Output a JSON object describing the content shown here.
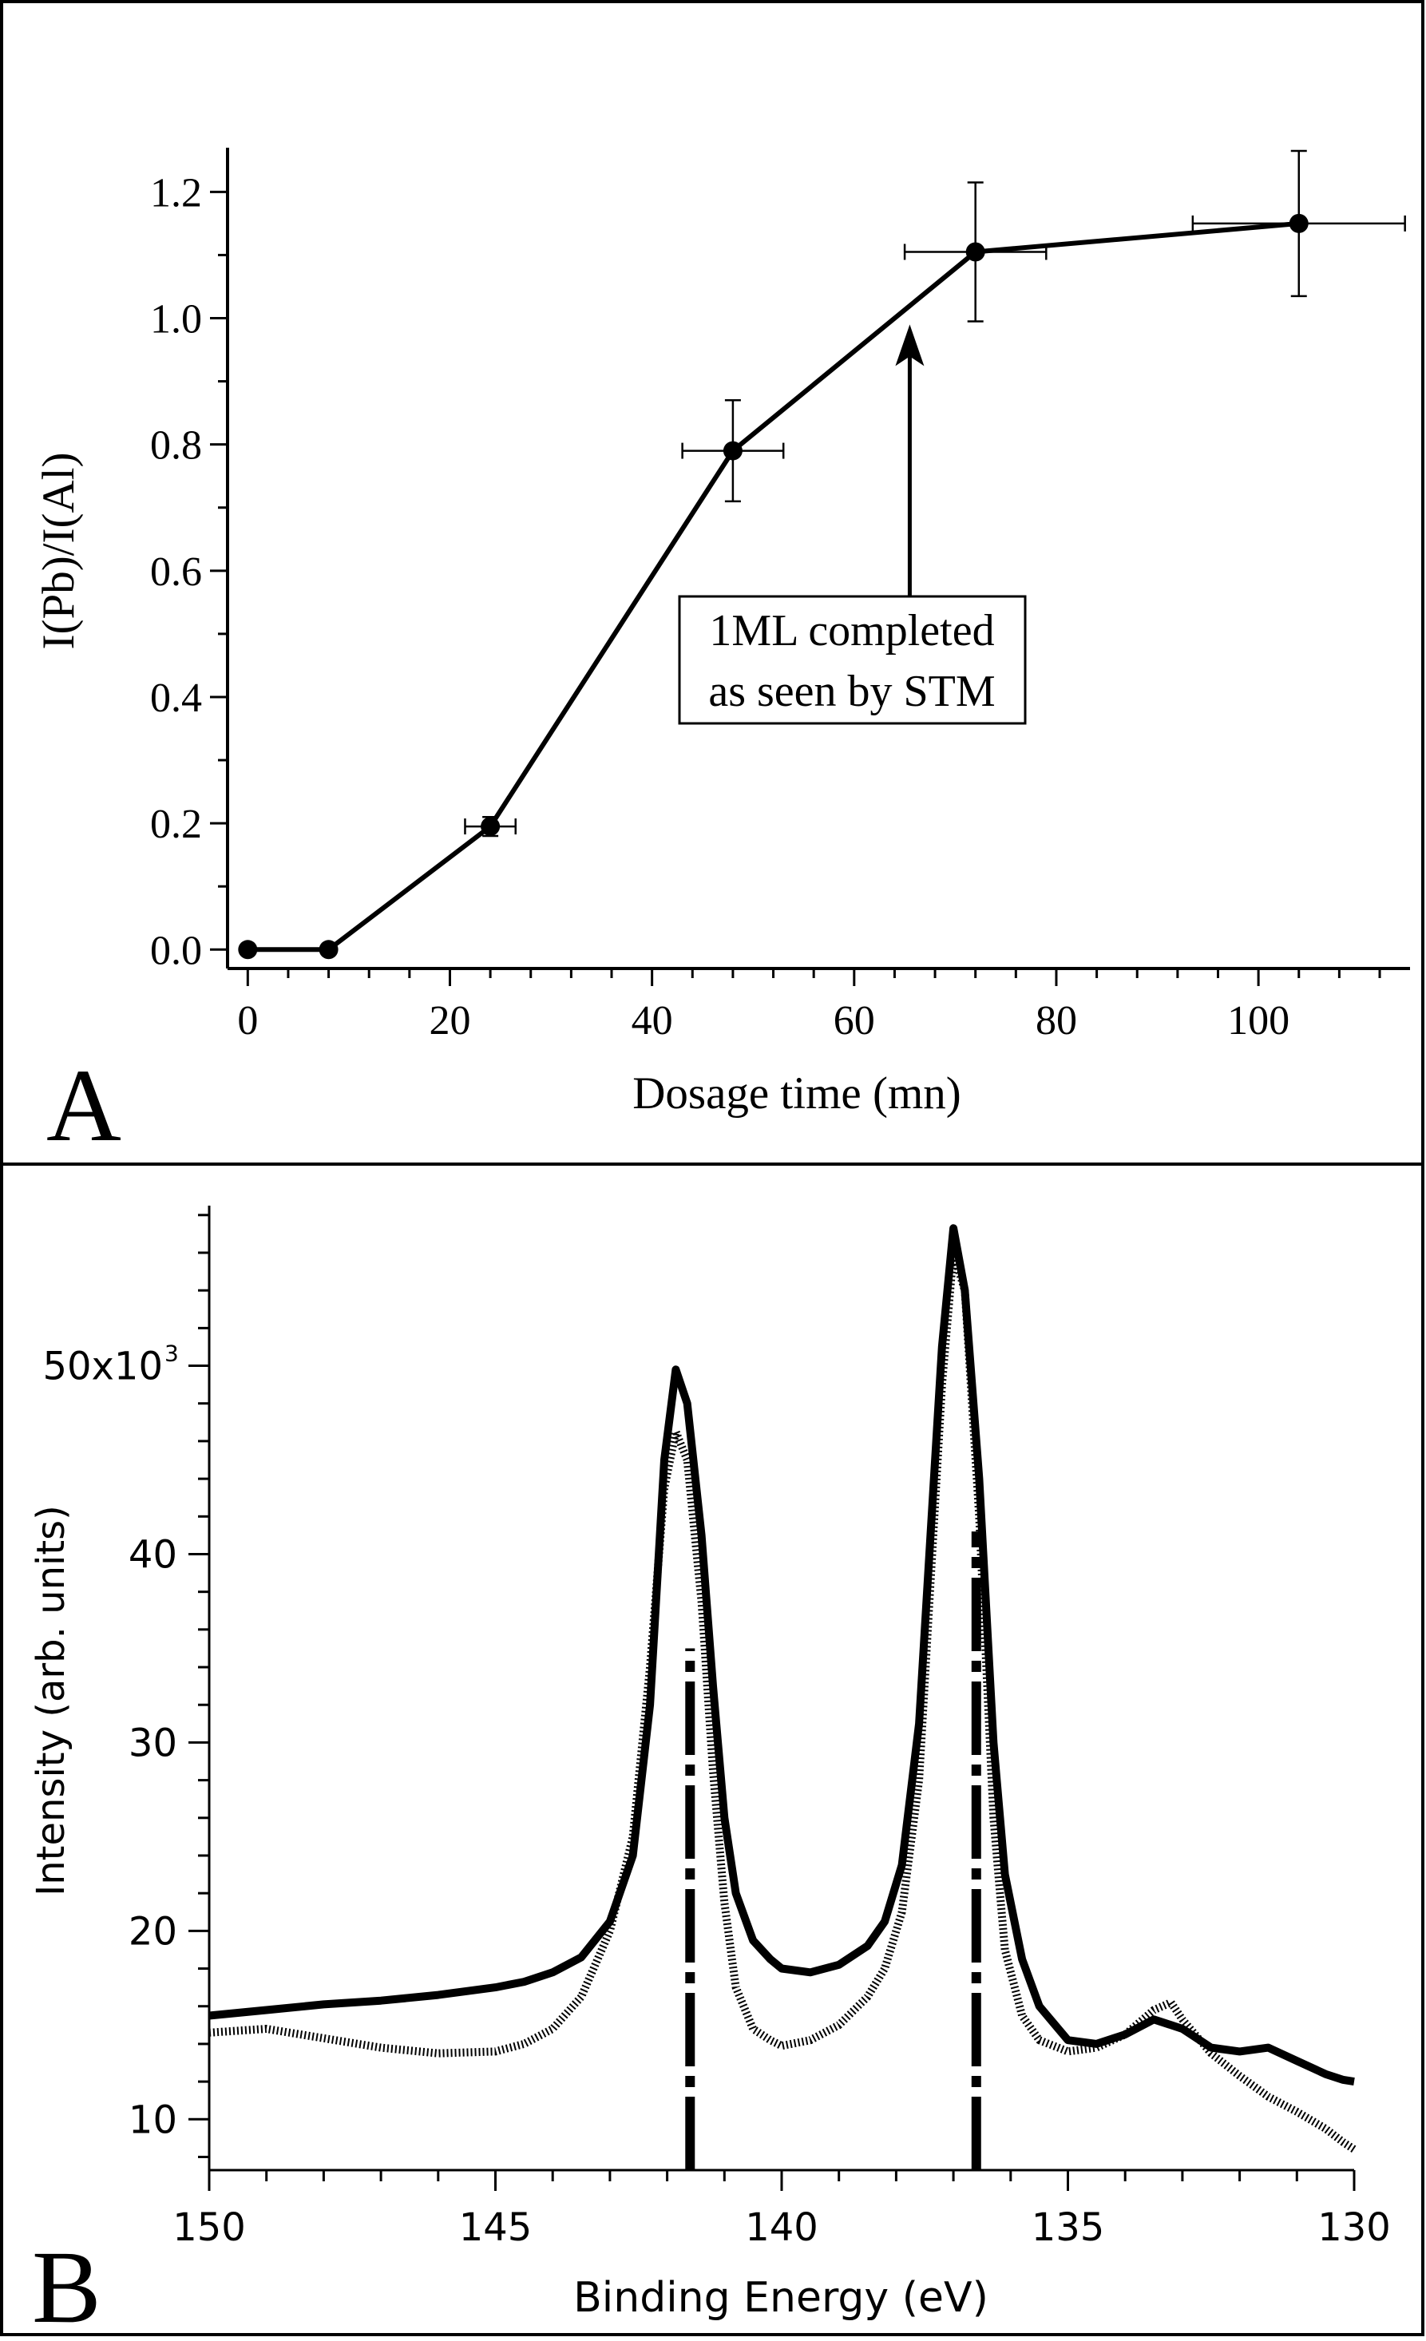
{
  "chart_data": [
    {
      "panel_label": "A",
      "type": "line",
      "xlabel": "Dosage time (mn)",
      "ylabel": "I(Pb)/I(Al)",
      "xlim": [
        -2,
        115
      ],
      "ylim": [
        -0.03,
        1.27
      ],
      "xticks": [
        0,
        20,
        40,
        60,
        80,
        100
      ],
      "yticks": [
        0.0,
        0.2,
        0.4,
        0.6,
        0.8,
        1.0,
        1.2
      ],
      "xtick_labels": [
        "0",
        "20",
        "40",
        "60",
        "80",
        "100"
      ],
      "ytick_labels": [
        "0.0",
        "0.2",
        "0.4",
        "0.6",
        "0.8",
        "1.0",
        "1.2"
      ],
      "x_minor_step": 4,
      "y_minor_step": 0.1,
      "series": [
        {
          "name": "I(Pb)/I(Al)",
          "x": [
            0,
            8,
            24,
            48,
            72,
            104
          ],
          "y": [
            0.0,
            0.0,
            0.195,
            0.79,
            1.105,
            1.15
          ],
          "xerr": [
            0,
            0,
            2.5,
            5,
            7,
            10.5
          ],
          "yerr": [
            0,
            0,
            0.015,
            0.08,
            0.11,
            0.115
          ]
        }
      ],
      "annotation": {
        "lines": [
          "1ML completed",
          "as seen by STM"
        ],
        "arrow_x": 65.5,
        "arrow_from_y": 0.56,
        "arrow_to_y": 0.99
      }
    },
    {
      "panel_label": "B",
      "type": "line",
      "xlabel": "Binding Energy (eV)",
      "ylabel": "Intensity (arb. units)",
      "xlim": [
        150,
        130
      ],
      "ylim": [
        7.3,
        58.5
      ],
      "xticks": [
        150,
        145,
        140,
        135,
        130
      ],
      "yticks": [
        10,
        20,
        30,
        40,
        50
      ],
      "xtick_labels": [
        "150",
        "145",
        "140",
        "135",
        "130"
      ],
      "ytick_labels": [
        "10",
        "20",
        "30",
        "40",
        "50x10"
      ],
      "ytick_exponent": "3",
      "x_minor_step": 1,
      "y_minor_step": 2,
      "series": [
        {
          "name": "solid spectrum",
          "style": "solid",
          "x": [
            150,
            149,
            148,
            147,
            146,
            145,
            144.5,
            144,
            143.5,
            143,
            142.6,
            142.3,
            142.05,
            141.85,
            141.65,
            141.4,
            141.2,
            141.0,
            140.8,
            140.5,
            140.2,
            140,
            139.5,
            139,
            138.5,
            138.2,
            137.9,
            137.6,
            137.4,
            137.2,
            137.0,
            136.8,
            136.55,
            136.3,
            136.1,
            135.8,
            135.5,
            135,
            134.5,
            134,
            133.5,
            133.2,
            133,
            132.5,
            132,
            131.5,
            131,
            130.5,
            130.2,
            130
          ],
          "y": [
            15.5,
            15.8,
            16.1,
            16.3,
            16.6,
            17.0,
            17.3,
            17.8,
            18.6,
            20.5,
            24.0,
            32.0,
            45.0,
            49.8,
            48.0,
            41.0,
            33.0,
            26.0,
            22.0,
            19.5,
            18.5,
            18.0,
            17.8,
            18.2,
            19.2,
            20.5,
            23.5,
            31.0,
            41.0,
            51.0,
            57.3,
            54.0,
            44.0,
            30.0,
            23.0,
            18.5,
            16.0,
            14.2,
            14.0,
            14.5,
            15.3,
            15.0,
            14.8,
            13.8,
            13.6,
            13.8,
            13.1,
            12.4,
            12.1,
            12.0
          ]
        },
        {
          "name": "dotted spectrum",
          "style": "dotted",
          "x": [
            150,
            149,
            148,
            147,
            146,
            145,
            144.5,
            144,
            143.5,
            143,
            142.6,
            142.3,
            142.05,
            141.85,
            141.65,
            141.4,
            141.2,
            141.0,
            140.8,
            140.5,
            140.2,
            140,
            139.5,
            139,
            138.5,
            138.2,
            137.9,
            137.6,
            137.4,
            137.2,
            137.0,
            136.8,
            136.55,
            136.3,
            136.1,
            135.8,
            135.5,
            135,
            134.5,
            134,
            133.5,
            133.2,
            133,
            132.5,
            132,
            131.5,
            131,
            130.5,
            130.2,
            130
          ],
          "y": [
            14.6,
            14.8,
            14.3,
            13.8,
            13.5,
            13.6,
            14.0,
            14.8,
            16.5,
            20.0,
            25.0,
            34.0,
            43.5,
            46.5,
            45.0,
            37.5,
            28.5,
            21.5,
            17.0,
            14.8,
            14.2,
            13.9,
            14.2,
            15.0,
            16.5,
            18.0,
            21.0,
            28.0,
            38.5,
            49.0,
            56.0,
            54.0,
            42.0,
            26.0,
            19.0,
            15.5,
            14.2,
            13.6,
            13.8,
            14.5,
            15.8,
            16.2,
            15.3,
            13.5,
            12.3,
            11.2,
            10.4,
            9.5,
            8.8,
            8.4
          ]
        }
      ],
      "component_bars": [
        {
          "x": 141.6,
          "y_top": 35.0
        },
        {
          "x": 136.6,
          "y_top": 41.2
        }
      ]
    }
  ]
}
